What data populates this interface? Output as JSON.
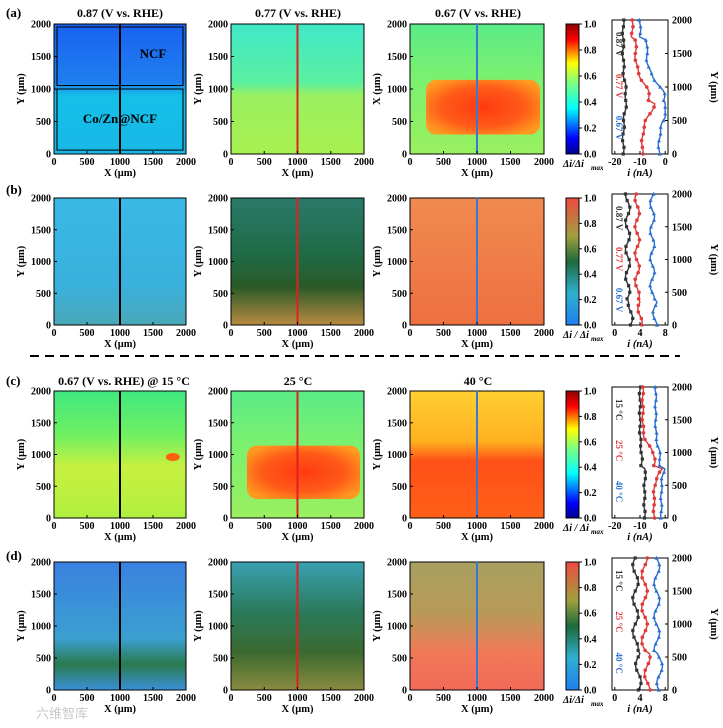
{
  "panels": {
    "a": "(a)",
    "b": "(b)",
    "c": "(c)",
    "d": "(d)"
  },
  "titles": {
    "a1": "0.87 (V vs. RHE)",
    "a2": "0.77 (V vs. RHE)",
    "a3": "0.67 (V vs. RHE)",
    "c1": "0.67 (V vs. RHE) @ 15 °C",
    "c2": "25 °C",
    "c3": "40 °C"
  },
  "map_axes": {
    "x_label": "X (μm)",
    "y_label": "Y (μm)",
    "x_label_alt": "X (μm)",
    "ticks": [
      "0",
      "500",
      "1000",
      "1500",
      "2000"
    ]
  },
  "region_labels": {
    "top": "NCF",
    "bottom": "Co/Zn@NCF"
  },
  "colorbar": {
    "ticks": [
      "0.0",
      "0.2",
      "0.4",
      "0.6",
      "0.8",
      "1.0"
    ],
    "label_a": "Δi/Δi",
    "label_b": "Δi / Δi",
    "label_c": "Δi / Δi",
    "label_d": "Δi/Δi",
    "sub": "max"
  },
  "line_plots": {
    "a": {
      "x_ticks": [
        "-20",
        "-10",
        "0"
      ],
      "x_label": "i (nA)",
      "y_label": "Y (μm)",
      "y_ticks": [
        "0",
        "500",
        "1000",
        "1500",
        "2000"
      ],
      "legend": [
        "0.87 V",
        "0.77 V",
        "0.67 V"
      ]
    },
    "b": {
      "x_ticks": [
        "0",
        "4",
        "8"
      ],
      "x_label": "i (nA)",
      "y_label": "Y (μm)",
      "y_ticks": [
        "0",
        "500",
        "1000",
        "1500",
        "2000"
      ],
      "legend": [
        "0.87 V",
        "0.77 V",
        "0.67 V"
      ]
    },
    "c": {
      "x_ticks": [
        "-20",
        "-10",
        "0"
      ],
      "x_label": "i (nA)",
      "y_label": "Y (μm)",
      "y_ticks": [
        "0",
        "500",
        "1000",
        "1500",
        "2000"
      ],
      "legend": [
        "15 °C",
        "25 °C",
        "40 °C"
      ]
    },
    "d": {
      "x_ticks": [
        "0",
        "4",
        "8"
      ],
      "x_label": "i (nA)",
      "y_label": "Y (μm)",
      "y_ticks": [
        "0",
        "500",
        "1000",
        "1500",
        "2000"
      ],
      "legend": [
        "15 °C",
        "25 °C",
        "40 °C"
      ]
    }
  },
  "colors": {
    "series": [
      "#333333",
      "#e03a3a",
      "#2a6fd0"
    ]
  },
  "watermark": "六维智库"
}
